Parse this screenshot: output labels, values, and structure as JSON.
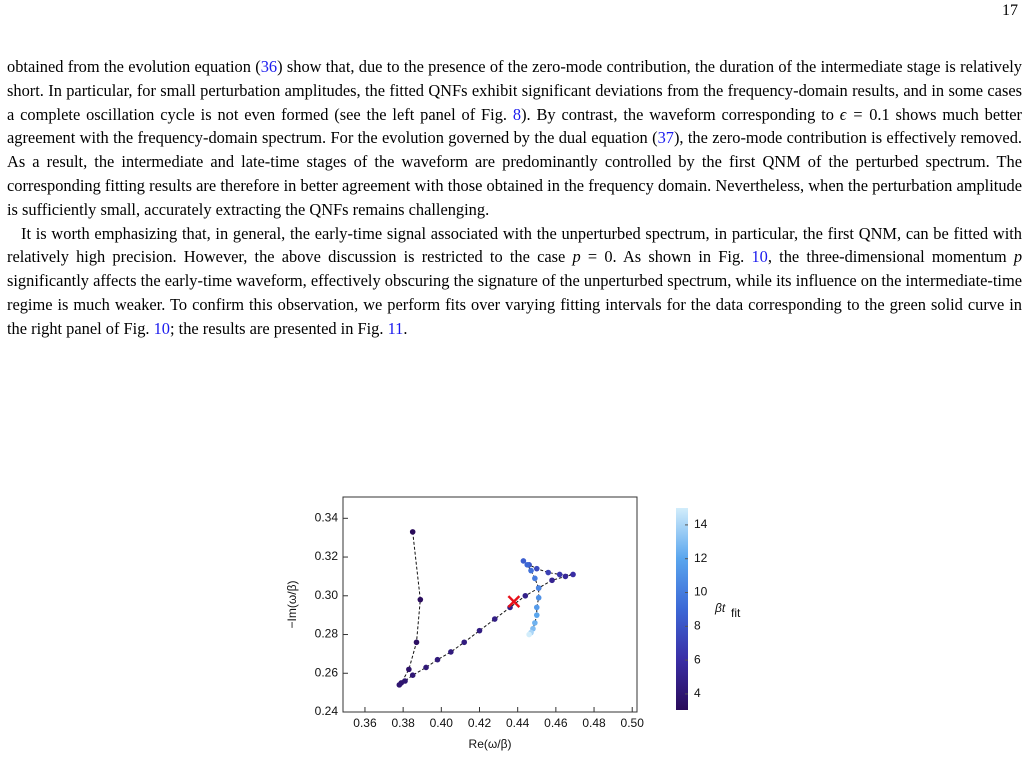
{
  "page_number": "17",
  "paragraphs": [
    {
      "spans": [
        "obtained from the evolution equation (",
        {
          "ref": "36"
        },
        ") show that, due to the presence of the zero-mode contribution, the duration of the intermediate stage is relatively short. In particular, for small perturbation amplitudes, the fitted QNFs exhibit significant deviations from the frequency-domain results, and in some cases a complete oscillation cycle is not even formed (see the left panel of Fig. ",
        {
          "ref": "8"
        },
        "). By contrast, the waveform corresponding to ",
        {
          "math": "ϵ = "
        },
        "0.1 shows much better agreement with the frequency-domain spectrum. For the evolution governed by the dual equation (",
        {
          "ref": "37"
        },
        "), the zero-mode contribution is effectively removed. As a result, the intermediate and late-time stages of the waveform are predominantly controlled by the first QNM of the perturbed spectrum. The corresponding fitting results are therefore in better agreement with those obtained in the frequency domain. Nevertheless, when the perturbation amplitude is sufficiently small, accurately extracting the QNFs remains challenging."
      ]
    },
    {
      "spans": [
        "It is worth emphasizing that, in general, the early-time signal associated with the unperturbed spectrum, in particular, the first QNM, can be fitted with relatively high precision. However, the above discussion is restricted to the case ",
        {
          "math": "p"
        },
        " = 0. As shown in Fig. ",
        {
          "ref": "10"
        },
        ", the three-dimensional momentum ",
        {
          "math": "p"
        },
        " significantly affects the early-time waveform, effectively obscuring the signature of the unperturbed spectrum, while its influence on the intermediate-time regime is much weaker. To confirm this observation, we perform fits over varying fitting intervals for the data corresponding to the green solid curve in the right panel of Fig. ",
        {
          "ref": "10"
        },
        "; the results are presented in Fig. ",
        {
          "ref": "11"
        },
        "."
      ]
    }
  ],
  "chart_data": {
    "type": "scatter",
    "x_label": "Re(ω/β)",
    "y_label": "−Im(ω/β)",
    "color_label": "βt",
    "color_label_sub": "fit",
    "xlim": [
      0.3485,
      0.5025
    ],
    "ylim": [
      0.24,
      0.351
    ],
    "xticks": [
      0.36,
      0.38,
      {
        "value": 0.4,
        "label": "0.40"
      },
      0.42,
      0.44,
      0.46,
      0.48,
      {
        "value": 0.5,
        "label": "0.50"
      }
    ],
    "yticks": [
      0.24,
      0.26,
      0.28,
      {
        "value": 0.3,
        "label": "0.30"
      },
      0.32,
      0.34
    ],
    "clim": [
      3.05,
      15
    ],
    "cticks": [
      4,
      6,
      8,
      10,
      12,
      14
    ],
    "colormap": [
      "#2a0b5a",
      "#3a2ea6",
      "#3c68d6",
      "#5aa6ee",
      "#d2edfb"
    ],
    "series": [
      {
        "x": [
          0.385,
          0.389,
          0.387,
          0.383,
          0.379,
          0.378,
          0.381,
          0.385,
          0.392,
          0.398,
          0.405,
          0.412,
          0.42,
          0.428,
          0.436,
          0.444,
          0.451,
          0.458,
          0.465,
          0.469,
          0.462,
          0.456,
          0.45,
          0.446,
          0.443,
          0.445,
          0.447,
          0.449,
          0.451,
          0.451,
          0.45,
          0.45,
          0.449,
          0.448,
          0.447,
          0.446
        ],
        "y": [
          0.333,
          0.298,
          0.276,
          0.262,
          0.255,
          0.254,
          0.256,
          0.259,
          0.263,
          0.267,
          0.271,
          0.276,
          0.282,
          0.288,
          0.294,
          0.3,
          0.304,
          0.308,
          0.31,
          0.311,
          0.311,
          0.312,
          0.314,
          0.316,
          0.318,
          0.316,
          0.313,
          0.309,
          0.304,
          0.299,
          0.294,
          0.29,
          0.286,
          0.283,
          0.281,
          0.28
        ],
        "c": [
          3.0,
          3.2,
          3.4,
          3.6,
          3.8,
          3.9,
          4.0,
          4.1,
          4.2,
          4.3,
          4.4,
          4.5,
          4.6,
          4.7,
          4.8,
          4.9,
          5.0,
          5.2,
          5.5,
          6.0,
          6.5,
          7.0,
          7.5,
          8.0,
          8.5,
          9.0,
          9.5,
          10,
          10.5,
          11,
          11.5,
          12,
          12.5,
          13,
          14,
          15
        ]
      }
    ],
    "reference_point": {
      "x": 0.438,
      "y": 0.297,
      "color": "#e8101a"
    }
  }
}
